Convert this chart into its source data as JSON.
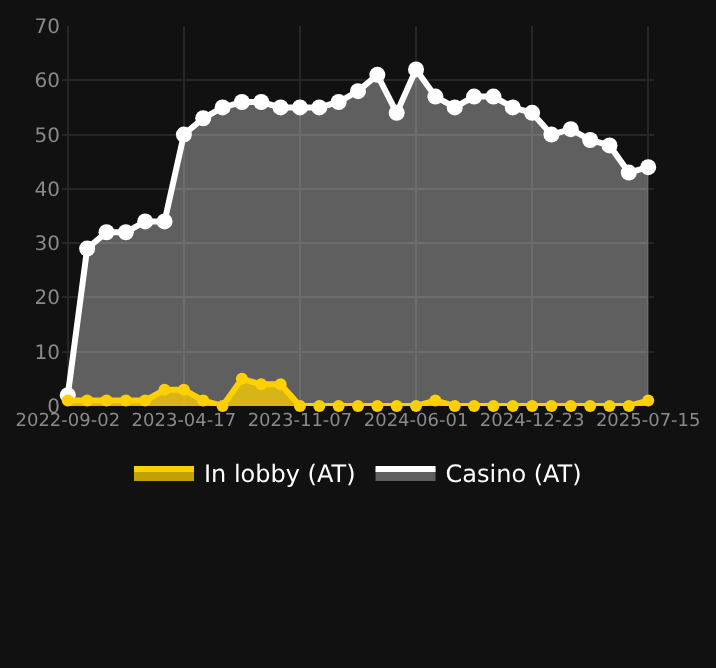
{
  "chart_data": {
    "type": "area",
    "categories": [
      "2022-09-02",
      null,
      null,
      null,
      null,
      null,
      "2023-04-17",
      null,
      null,
      null,
      null,
      null,
      "2023-11-07",
      null,
      null,
      null,
      null,
      null,
      "2024-06-01",
      null,
      null,
      null,
      null,
      null,
      "2024-12-23",
      null,
      null,
      null,
      null,
      null,
      "2025-07-15"
    ],
    "series": [
      {
        "name": "In lobby (AT)",
        "color": "#ffd000",
        "values": [
          1,
          1,
          1,
          1,
          1,
          3,
          3,
          1,
          0,
          5,
          4,
          4,
          0,
          0,
          0,
          0,
          0,
          0,
          0,
          1,
          0,
          0,
          0,
          0,
          0,
          0,
          0,
          0,
          0,
          0,
          1
        ]
      },
      {
        "name": "Casino (AT)",
        "color": "#ffffff",
        "values": [
          2,
          29,
          32,
          32,
          34,
          34,
          50,
          53,
          55,
          56,
          56,
          55,
          55,
          55,
          56,
          58,
          61,
          54,
          62,
          57,
          55,
          57,
          57,
          55,
          54,
          50,
          51,
          49,
          48,
          43,
          44
        ]
      }
    ],
    "ylim": [
      0,
      70
    ],
    "yticks": [
      0,
      10,
      20,
      30,
      40,
      50,
      60,
      70
    ],
    "grid": true,
    "legend": "bottom",
    "marker": "circle",
    "line_style": "solid"
  }
}
